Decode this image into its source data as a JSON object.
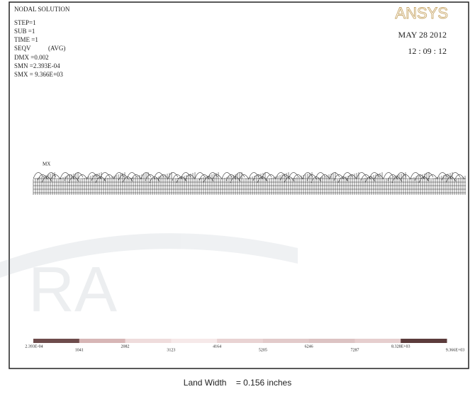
{
  "header": {
    "title": "NODAL SOLUTION",
    "info": [
      "STEP=1",
      "SUB =1",
      "TIME =1"
    ],
    "result": "SEQV",
    "result_mode": "(AVG)",
    "stats": [
      "DMX =0.002",
      "SMN =2.393E-04",
      "SMX = 9.366E+03"
    ],
    "logo": "ANSYS",
    "date": "MAY 28 2012",
    "time": "12 : 09 : 12"
  },
  "plot": {
    "max_marker": "MX"
  },
  "legend": {
    "labels": [
      "2.393E-04",
      "1041",
      "2082",
      "3123",
      "4164",
      "5205",
      "6246",
      "7287",
      "8.328E+03",
      "9.366E+03"
    ],
    "colors": [
      "#6e4c4c",
      "#d7b6b6",
      "#efdcdc",
      "#f6e9e9",
      "#e9d3d3",
      "#e2caca",
      "#dcc3c3",
      "#e6cece",
      "#5c3c3c"
    ]
  },
  "caption": "Land Width    = 0.156 inches"
}
